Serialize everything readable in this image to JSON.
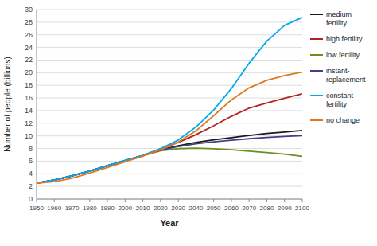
{
  "chart_data": {
    "type": "line",
    "title": "",
    "xlabel": "Year",
    "ylabel": "Number of people (billions)",
    "x": [
      1950,
      1960,
      1970,
      1980,
      1990,
      2000,
      2010,
      2020,
      2030,
      2040,
      2050,
      2060,
      2070,
      2080,
      2090,
      2100
    ],
    "series": [
      {
        "name": "medium\nfertility",
        "color": "#1a1a1a",
        "values": [
          2.52,
          3.02,
          3.68,
          4.43,
          5.29,
          6.09,
          6.89,
          7.79,
          8.42,
          8.97,
          9.37,
          9.72,
          10.06,
          10.38,
          10.6,
          10.85
        ]
      },
      {
        "name": "high fertility",
        "color": "#b22222",
        "values": [
          2.52,
          3.02,
          3.68,
          4.43,
          5.29,
          6.09,
          6.89,
          7.95,
          8.97,
          10.2,
          11.6,
          13.1,
          14.4,
          15.2,
          15.95,
          16.65
        ]
      },
      {
        "name": "low fertility",
        "color": "#6b8e23",
        "values": [
          2.52,
          3.02,
          3.68,
          4.43,
          5.29,
          6.09,
          6.89,
          7.65,
          7.97,
          8.05,
          7.96,
          7.79,
          7.58,
          7.35,
          7.1,
          6.75
        ]
      },
      {
        "name": "instant-\nreplacement",
        "color": "#483d8b",
        "values": [
          2.52,
          3.02,
          3.68,
          4.43,
          5.29,
          6.09,
          6.89,
          7.75,
          8.3,
          8.75,
          9.05,
          9.3,
          9.55,
          9.75,
          9.9,
          10.05
        ]
      },
      {
        "name": "constant\nfertility",
        "color": "#00aced",
        "values": [
          2.52,
          3.02,
          3.68,
          4.43,
          5.29,
          6.09,
          6.89,
          7.95,
          9.35,
          11.4,
          14.1,
          17.5,
          21.5,
          25.0,
          27.5,
          28.75
        ]
      },
      {
        "name": "no change",
        "color": "#e07820",
        "values": [
          2.52,
          2.75,
          3.3,
          4.1,
          5.0,
          5.9,
          6.8,
          7.8,
          9.0,
          10.8,
          13.2,
          15.7,
          17.6,
          18.8,
          19.55,
          20.1
        ]
      }
    ],
    "xlim": [
      1950,
      2100
    ],
    "ylim": [
      0,
      30
    ],
    "xticks": [
      1950,
      1960,
      1970,
      1980,
      1990,
      2000,
      2010,
      2020,
      2030,
      2040,
      2050,
      2060,
      2070,
      2080,
      2090,
      2100
    ],
    "yticks": [
      0,
      2,
      4,
      6,
      8,
      10,
      12,
      14,
      16,
      18,
      20,
      22,
      24,
      26,
      28,
      30
    ],
    "grid": true,
    "legend": "right"
  }
}
